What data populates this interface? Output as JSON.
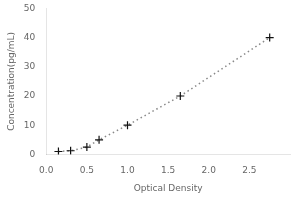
{
  "chart_data": {
    "type": "line",
    "x": [
      0.15,
      0.3,
      0.5,
      0.65,
      1.0,
      1.65,
      2.75
    ],
    "values": [
      1.0,
      1.25,
      2.5,
      5.0,
      10.0,
      20.0,
      40.0
    ],
    "xlabel": "Optical Density",
    "ylabel": "Concentration(pg/mL)",
    "xlim": [
      0,
      3.0
    ],
    "ylim": [
      0,
      50
    ],
    "xticks": [
      {
        "value": 0,
        "label": "0.0"
      },
      0.5,
      {
        "value": 1,
        "label": "1.0"
      },
      1.5,
      {
        "value": 2,
        "label": "2.0"
      },
      2.5
    ],
    "yticks": [
      0,
      10,
      20,
      30,
      40,
      50
    ],
    "color": "#888888",
    "marker_color": "#111111",
    "line_style": "dotted",
    "marker": "plus",
    "grid": false
  }
}
